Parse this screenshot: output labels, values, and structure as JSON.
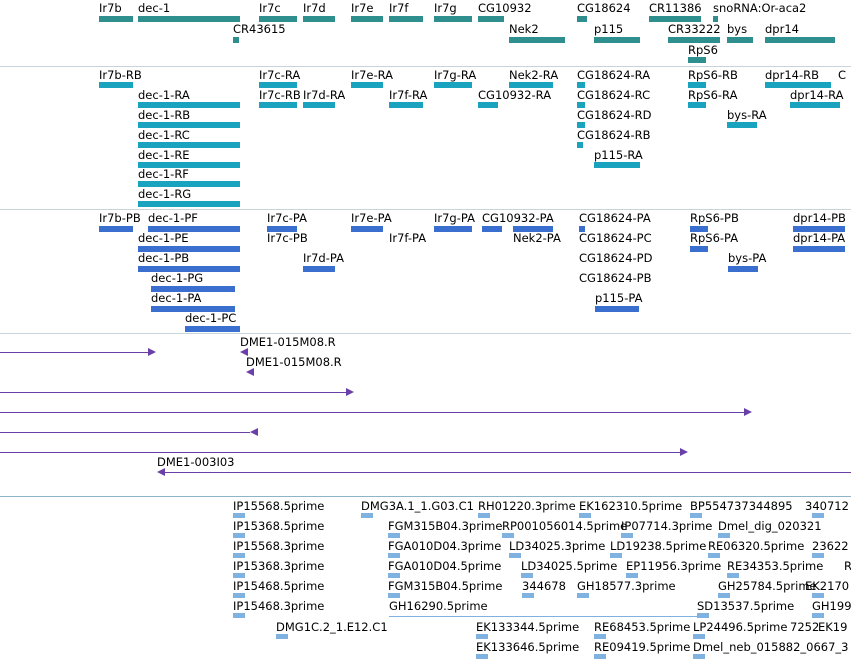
{
  "colors": {
    "gene": "#2f8f8f",
    "transcript": "#1aa3bf",
    "protein": "#3a6fd0",
    "bac": "#6a3fa8",
    "est": "#7fb2e0",
    "separator": "#8fb3c8"
  },
  "tracks": {
    "genes": {
      "labels": [
        "Ir7b",
        "dec-1",
        "Ir7c",
        "Ir7d",
        "Ir7e",
        "Ir7f",
        "Ir7g",
        "CG10932",
        "CG18624",
        "CR11386",
        "snoRNA:Or-aca2",
        "CR43615",
        "Nek2",
        "p115",
        "CR33222",
        "bys",
        "dpr14",
        "RpS6"
      ]
    },
    "transcripts": {
      "labels": [
        "Ir7b-RB",
        "dec-1-RA",
        "dec-1-RB",
        "dec-1-RC",
        "dec-1-RE",
        "dec-1-RF",
        "dec-1-RG",
        "Ir7c-RA",
        "Ir7c-RB",
        "Ir7d-RA",
        "Ir7e-RA",
        "Ir7f-RA",
        "Ir7g-RA",
        "Nek2-RA",
        "CG10932-RA",
        "CG18624-RA",
        "CG18624-RC",
        "CG18624-RD",
        "CG18624-RB",
        "p115-RA",
        "RpS6-RB",
        "RpS6-RA",
        "bys-RA",
        "dpr14-RB",
        "dpr14-RA"
      ]
    },
    "proteins": {
      "labels": [
        "Ir7b-PB",
        "dec-1-PF",
        "dec-1-PE",
        "dec-1-PB",
        "dec-1-PG",
        "dec-1-PA",
        "dec-1-PC",
        "Ir7c-PA",
        "Ir7c-PB",
        "Ir7d-PA",
        "Ir7e-PA",
        "Ir7f-PA",
        "Ir7g-PA",
        "CG10932-PA",
        "Nek2-PA",
        "CG18624-PA",
        "CG18624-PC",
        "CG18624-PD",
        "CG18624-PB",
        "p115-PA",
        "RpS6-PB",
        "RpS6-PA",
        "bys-PA",
        "dpr14-PB",
        "dpr14-PA"
      ]
    },
    "bac": {
      "labels": [
        "DME1-015M08.R",
        "DME1-015M08.R",
        "DME1-003I03"
      ]
    },
    "est": {
      "labels": [
        "IP15568.5prime",
        "IP15368.5prime",
        "IP15568.3prime",
        "IP15368.3prime",
        "IP15468.5prime",
        "IP15468.3prime",
        "DMG3A.1_1.G03.C1",
        "FGM315B04.3prime",
        "FGA010D04.3prime",
        "FGA010D04.5prime",
        "FGM315B04.5prime",
        "GH16290.5prime",
        "DMG1C.2_1.E12.C1",
        "RH01220.3prime",
        "RP001056014.5prime",
        "LD34025.3prime",
        "LD34025.5prime",
        "344678",
        "EK162310.5prime",
        "IP07714.3prime",
        "LD19238.5prime",
        "EP11956.3prime",
        "GH18577.3prime",
        "EK133344.5prime",
        "EK133646.5prime",
        "RE68453.5prime",
        "RE09419.5prime",
        "BP554737344895",
        "Dmel_dig_020321",
        "RE06320.5prime",
        "RE34353.5prime",
        "GH25784.5prime",
        "SD13537.5prime",
        "LP24496.5prime",
        "Dmel_neb_015882_0667_3",
        "340712",
        "23622",
        "R",
        "EK2170",
        "GH199",
        "7252",
        "EK19"
      ]
    }
  }
}
